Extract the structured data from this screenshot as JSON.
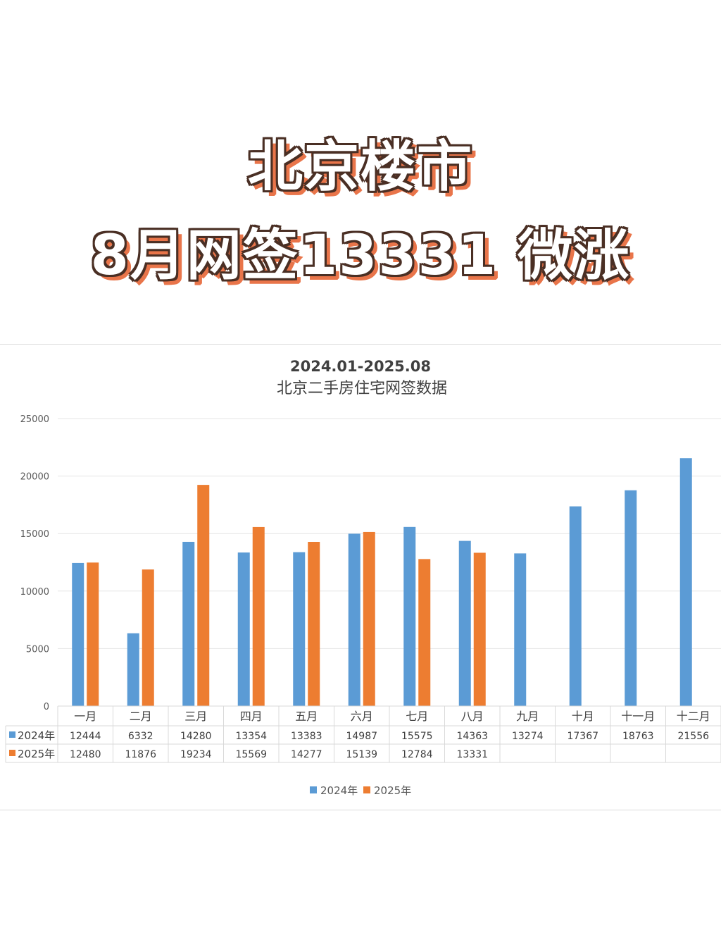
{
  "headline": {
    "line1": "北京楼市",
    "line2": "8月网签13331 微涨"
  },
  "colors": {
    "series_2024": "#5b9bd5",
    "series_2025": "#ed7d31",
    "headline_outline": "#4a2f24",
    "headline_shadow": "#e9754a"
  },
  "chart_data": {
    "type": "bar",
    "title": "2024.01-2025.08",
    "subtitle": "北京二手房住宅网签数据",
    "categories": [
      "一月",
      "二月",
      "三月",
      "四月",
      "五月",
      "六月",
      "七月",
      "八月",
      "九月",
      "十月",
      "十一月",
      "十二月"
    ],
    "series": [
      {
        "name": "2024年",
        "values": [
          12444,
          6332,
          14280,
          13354,
          13383,
          14987,
          15575,
          14363,
          13274,
          17367,
          18763,
          21556
        ]
      },
      {
        "name": "2025年",
        "values": [
          12480,
          11876,
          19234,
          15569,
          14277,
          15139,
          12784,
          13331,
          null,
          null,
          null,
          null
        ]
      }
    ],
    "yticks": [
      "0",
      "5000",
      "10000",
      "15000",
      "20000",
      "25000"
    ],
    "ylim": [
      0,
      25000
    ],
    "grid": true,
    "legend": "bottom",
    "data_table": true
  }
}
